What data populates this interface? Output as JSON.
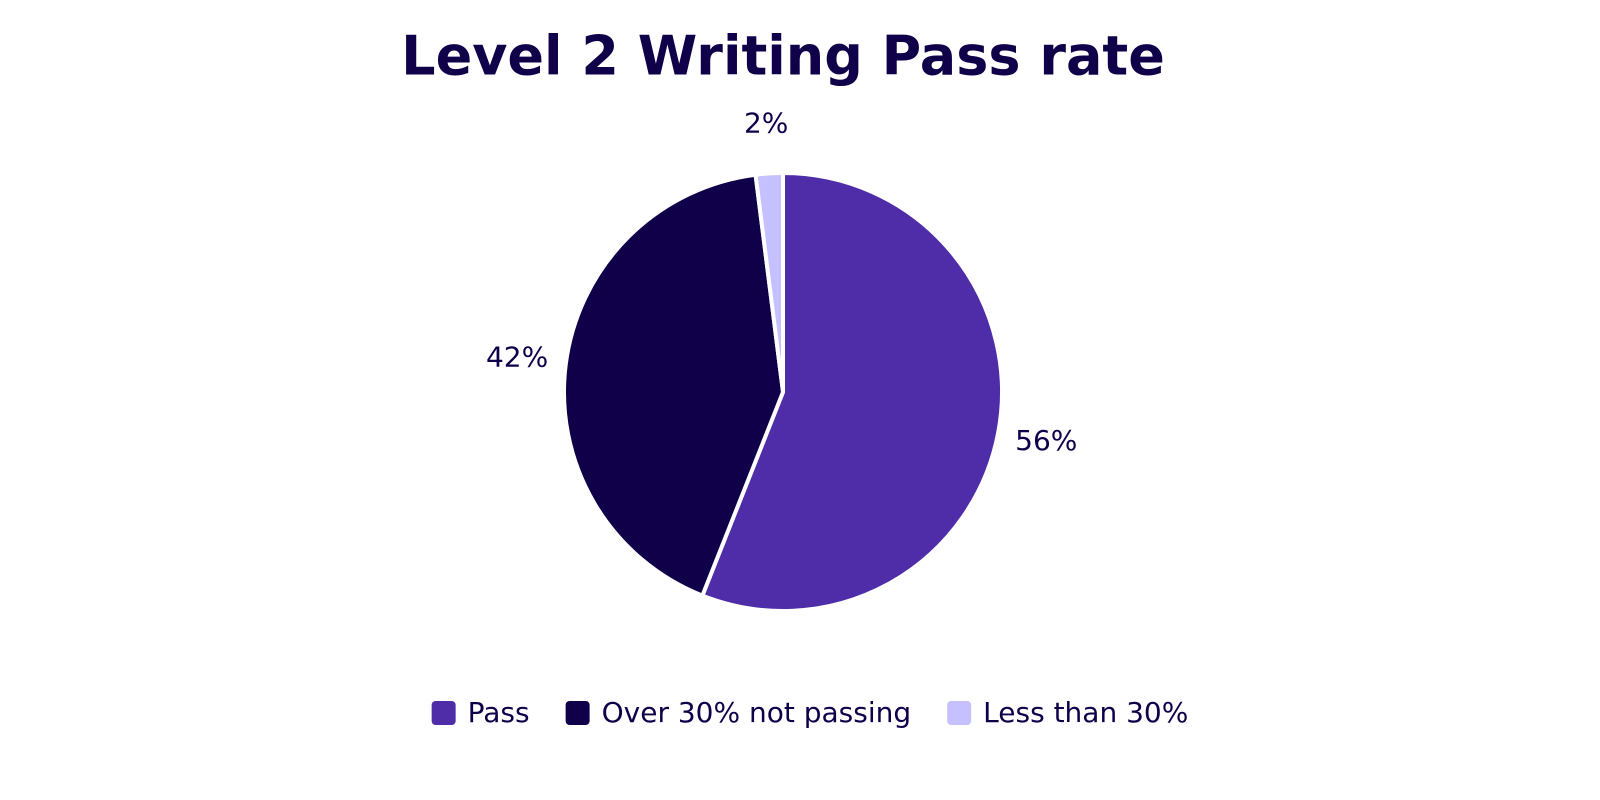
{
  "chart_data": {
    "type": "pie",
    "title": "Level 2 Writing Pass rate",
    "categories": [
      "Pass",
      "Over 30% not passing",
      "Less than 30%"
    ],
    "values": [
      56,
      42,
      2
    ],
    "value_labels": [
      "56%",
      "42%",
      "2%"
    ],
    "colors": [
      "#4f2da8",
      "#10004a",
      "#c5c0ff"
    ]
  }
}
